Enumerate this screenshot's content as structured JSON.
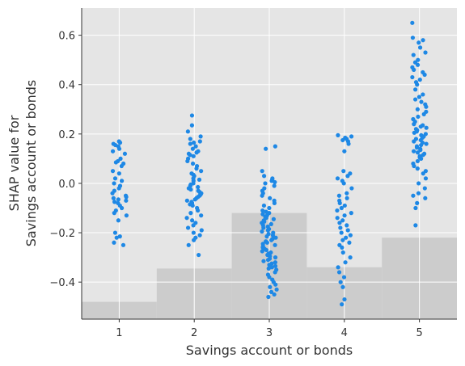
{
  "chart_data": {
    "type": "scatter",
    "xlabel": "Savings account or bonds",
    "ylabel_lines": [
      "SHAP value for",
      "Savings account or bonds"
    ],
    "xlim": [
      0.5,
      5.5
    ],
    "ylim": [
      -0.55,
      0.71
    ],
    "grid": true,
    "categories": [
      "1",
      "2",
      "3",
      "4",
      "5"
    ],
    "y_ticks": [
      "−0.4",
      "−0.2",
      "0.0",
      "0.2",
      "0.4",
      "0.6"
    ],
    "y_tick_values": [
      -0.4,
      -0.2,
      0.0,
      0.2,
      0.4,
      0.6
    ],
    "point_color": "#1e88e5",
    "background_color": "#e5e5e5",
    "histogram_color": "#cccccc",
    "histogram_top_values": [
      -0.48,
      -0.345,
      -0.12,
      -0.34,
      -0.22
    ],
    "series": [
      {
        "x": 1,
        "values": [
          0.17,
          0.165,
          0.16,
          0.155,
          0.15,
          0.14,
          0.13,
          0.12,
          0.1,
          0.09,
          0.085,
          0.08,
          0.07,
          0.05,
          0.04,
          0.02,
          0.01,
          0.0,
          -0.01,
          -0.02,
          -0.03,
          -0.04,
          -0.05,
          -0.055,
          -0.06,
          -0.065,
          -0.07,
          -0.075,
          -0.08,
          -0.09,
          -0.1,
          -0.11,
          -0.12,
          -0.13,
          -0.15,
          -0.2,
          -0.215,
          -0.22,
          -0.24,
          -0.25
        ]
      },
      {
        "x": 2,
        "values": [
          0.275,
          0.235,
          0.21,
          0.19,
          0.18,
          0.17,
          0.165,
          0.16,
          0.15,
          0.14,
          0.13,
          0.125,
          0.12,
          0.115,
          0.11,
          0.1,
          0.09,
          0.08,
          0.07,
          0.06,
          0.05,
          0.04,
          0.035,
          0.03,
          0.02,
          0.015,
          0.01,
          0.0,
          -0.005,
          -0.01,
          -0.015,
          -0.02,
          -0.025,
          -0.03,
          -0.035,
          -0.04,
          -0.045,
          -0.05,
          -0.055,
          -0.06,
          -0.065,
          -0.07,
          -0.075,
          -0.08,
          -0.085,
          -0.09,
          -0.1,
          -0.11,
          -0.12,
          -0.13,
          -0.14,
          -0.15,
          -0.16,
          -0.17,
          -0.18,
          -0.19,
          -0.2,
          -0.21,
          -0.22,
          -0.23,
          -0.25,
          -0.29
        ]
      },
      {
        "x": 3,
        "values": [
          0.15,
          0.14,
          0.05,
          0.03,
          0.02,
          0.015,
          0.01,
          0.005,
          0.0,
          -0.01,
          -0.02,
          -0.03,
          -0.04,
          -0.05,
          -0.06,
          -0.07,
          -0.08,
          -0.09,
          -0.1,
          -0.11,
          -0.115,
          -0.12,
          -0.125,
          -0.13,
          -0.135,
          -0.14,
          -0.145,
          -0.15,
          -0.155,
          -0.16,
          -0.165,
          -0.17,
          -0.175,
          -0.18,
          -0.185,
          -0.19,
          -0.195,
          -0.2,
          -0.205,
          -0.21,
          -0.215,
          -0.22,
          -0.225,
          -0.23,
          -0.235,
          -0.24,
          -0.245,
          -0.25,
          -0.255,
          -0.26,
          -0.265,
          -0.27,
          -0.275,
          -0.28,
          -0.285,
          -0.29,
          -0.295,
          -0.3,
          -0.305,
          -0.31,
          -0.315,
          -0.32,
          -0.325,
          -0.33,
          -0.335,
          -0.34,
          -0.345,
          -0.35,
          -0.36,
          -0.37,
          -0.38,
          -0.39,
          -0.4,
          -0.41,
          -0.42,
          -0.43,
          -0.44,
          -0.45,
          -0.46
        ]
      },
      {
        "x": 4,
        "values": [
          0.195,
          0.19,
          0.185,
          0.18,
          0.175,
          0.17,
          0.16,
          0.13,
          0.05,
          0.04,
          0.03,
          0.02,
          0.01,
          0.0,
          -0.02,
          -0.04,
          -0.05,
          -0.06,
          -0.07,
          -0.08,
          -0.09,
          -0.1,
          -0.11,
          -0.12,
          -0.13,
          -0.14,
          -0.15,
          -0.16,
          -0.17,
          -0.18,
          -0.19,
          -0.2,
          -0.21,
          -0.22,
          -0.23,
          -0.24,
          -0.25,
          -0.26,
          -0.28,
          -0.3,
          -0.32,
          -0.34,
          -0.36,
          -0.38,
          -0.4,
          -0.42,
          -0.47,
          -0.49
        ]
      },
      {
        "x": 5,
        "values": [
          0.65,
          0.59,
          0.58,
          0.57,
          0.55,
          0.53,
          0.52,
          0.5,
          0.49,
          0.48,
          0.47,
          0.46,
          0.45,
          0.44,
          0.43,
          0.42,
          0.41,
          0.4,
          0.38,
          0.36,
          0.35,
          0.34,
          0.33,
          0.32,
          0.31,
          0.3,
          0.29,
          0.28,
          0.27,
          0.26,
          0.25,
          0.24,
          0.235,
          0.23,
          0.225,
          0.22,
          0.215,
          0.21,
          0.205,
          0.2,
          0.195,
          0.19,
          0.185,
          0.18,
          0.175,
          0.17,
          0.165,
          0.16,
          0.155,
          0.15,
          0.145,
          0.14,
          0.135,
          0.13,
          0.125,
          0.12,
          0.115,
          0.11,
          0.105,
          0.1,
          0.09,
          0.08,
          0.07,
          0.06,
          0.05,
          0.04,
          0.02,
          0.0,
          -0.02,
          -0.04,
          -0.05,
          -0.06,
          -0.08,
          -0.1,
          -0.17
        ]
      }
    ]
  }
}
